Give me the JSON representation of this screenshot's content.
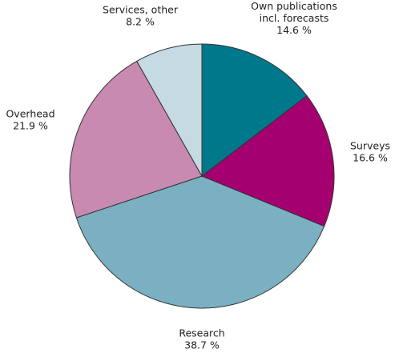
{
  "chart_data": {
    "type": "pie",
    "start": "12 o'clock",
    "direction": "clockwise",
    "slices": [
      {
        "name": "Own publications incl. forecasts",
        "label_lines": [
          "Own publications",
          "incl. forecasts"
        ],
        "value": 14.6,
        "value_label": "14.6 %",
        "color": "#00788c"
      },
      {
        "name": "Surveys",
        "label_lines": [
          "Surveys"
        ],
        "value": 16.6,
        "value_label": "16.6 %",
        "color": "#a4006f"
      },
      {
        "name": "Research",
        "label_lines": [
          "Research"
        ],
        "value": 38.7,
        "value_label": "38.7 %",
        "color": "#7ab0c2"
      },
      {
        "name": "Overhead",
        "label_lines": [
          "Overhead"
        ],
        "value": 21.9,
        "value_label": "21.9 %",
        "color": "#c98ab1"
      },
      {
        "name": "Services, other",
        "label_lines": [
          "Services, other"
        ],
        "value": 8.2,
        "value_label": "8.2 %",
        "color": "#c5dae2"
      }
    ]
  }
}
